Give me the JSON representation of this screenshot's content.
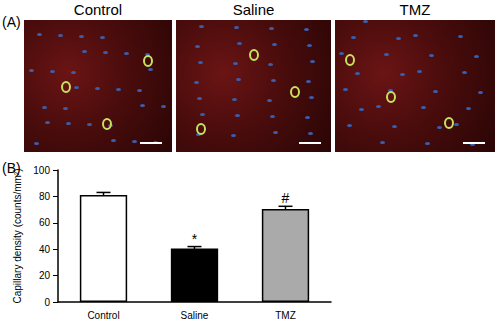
{
  "panels": {
    "label": "(A)",
    "titles": [
      "Control",
      "Saline",
      "TMZ"
    ]
  },
  "chart_label": "(B)",
  "chart_data": {
    "type": "bar",
    "categories": [
      "Control",
      "Saline",
      "TMZ"
    ],
    "values": [
      81,
      40.5,
      70.5
    ],
    "errors": [
      2,
      1.5,
      2
    ],
    "colors": [
      "#ffffff",
      "#000000",
      "#aaaaaa"
    ],
    "ylabel": "Capillary density (counts/mm²)",
    "ylim": [
      0,
      100
    ],
    "yticks": [
      0,
      20,
      40,
      60,
      80,
      100
    ],
    "annotations": [
      {
        "category": "Saline",
        "text": "*"
      },
      {
        "category": "TMZ",
        "text": "#"
      }
    ],
    "grid": false
  }
}
